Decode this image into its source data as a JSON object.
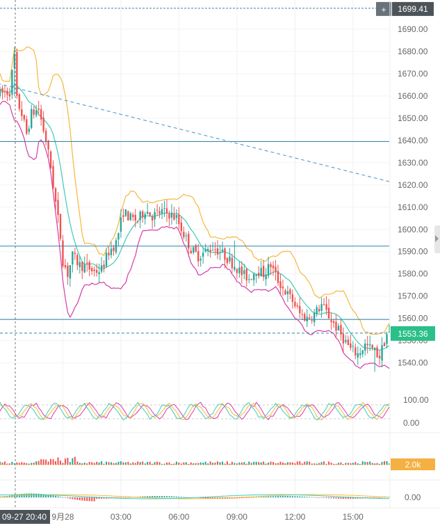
{
  "chart_data": {
    "type": "candlestick",
    "price_axis": {
      "range": [
        1528,
        1700
      ],
      "ticks": [
        1540,
        1550,
        1560,
        1570,
        1580,
        1590,
        1600,
        1610,
        1620,
        1630,
        1640,
        1650,
        1660,
        1670,
        1680,
        1690
      ]
    },
    "time_axis": {
      "range": [
        0,
        161
      ],
      "ticks": [
        {
          "t": 0,
          "label": "09-27 20:40"
        },
        {
          "t": 26,
          "label": "9月28"
        },
        {
          "t": 50,
          "label": "03:00"
        },
        {
          "t": 74,
          "label": "06:00"
        },
        {
          "t": 98,
          "label": "09:00"
        },
        {
          "t": 122,
          "label": "12:00"
        },
        {
          "t": 146,
          "label": "15:00"
        }
      ]
    },
    "crosshair": {
      "price_label": "1699.41",
      "time_label": "09-27 20:40"
    },
    "last_price": "1553.36",
    "horizontal_lines": [
      1639.5,
      1592.5,
      1559.5
    ],
    "trend_line": {
      "from": [
        -6,
        1667
      ],
      "to": [
        161,
        1621.5
      ]
    },
    "price_path": [
      [
        0,
        1661
      ],
      [
        4,
        1662
      ],
      [
        6,
        1678
      ],
      [
        7,
        1658
      ],
      [
        9,
        1652
      ],
      [
        11,
        1643
      ],
      [
        13,
        1652
      ],
      [
        16,
        1654
      ],
      [
        19,
        1640
      ],
      [
        21,
        1628
      ],
      [
        23,
        1612
      ],
      [
        25,
        1597
      ],
      [
        26,
        1586
      ],
      [
        28,
        1580
      ],
      [
        30,
        1588
      ],
      [
        33,
        1584
      ],
      [
        36,
        1583
      ],
      [
        39,
        1581
      ],
      [
        42,
        1582
      ],
      [
        45,
        1590
      ],
      [
        48,
        1594
      ],
      [
        51,
        1608
      ],
      [
        54,
        1605
      ],
      [
        57,
        1604
      ],
      [
        60,
        1609
      ],
      [
        63,
        1606
      ],
      [
        67,
        1608
      ],
      [
        70,
        1607
      ],
      [
        73,
        1605
      ],
      [
        76,
        1598
      ],
      [
        79,
        1591
      ],
      [
        82,
        1588
      ],
      [
        85,
        1590
      ],
      [
        88,
        1592
      ],
      [
        91,
        1590
      ],
      [
        94,
        1587
      ],
      [
        97,
        1584
      ],
      [
        100,
        1580
      ],
      [
        103,
        1578
      ],
      [
        106,
        1582
      ],
      [
        109,
        1580
      ],
      [
        112,
        1584
      ],
      [
        115,
        1577
      ],
      [
        118,
        1572
      ],
      [
        121,
        1568
      ],
      [
        124,
        1562
      ],
      [
        127,
        1560
      ],
      [
        130,
        1562
      ],
      [
        133,
        1566
      ],
      [
        136,
        1561
      ],
      [
        139,
        1556
      ],
      [
        142,
        1551
      ],
      [
        145,
        1546
      ],
      [
        148,
        1544
      ],
      [
        151,
        1548
      ],
      [
        154,
        1546
      ],
      [
        157,
        1543
      ],
      [
        160,
        1553
      ]
    ],
    "indicators": {
      "oscillator_levels": [
        "100.00",
        "0.00"
      ],
      "volume_label": "2.0k",
      "macd_zero": "0.00"
    },
    "colors": {
      "up": "#26a69a",
      "down": "#ef5350",
      "band_upper": "#f6b73c",
      "band_lower": "#d63aa6",
      "ma": "#3ecbb5",
      "level_line": "#2e86ab",
      "trend_line": "#4a90c8",
      "last_price_tag": "#2bbf8a",
      "crosshair_tag": "#4d5459",
      "volume_tag": "#f5b043"
    }
  }
}
